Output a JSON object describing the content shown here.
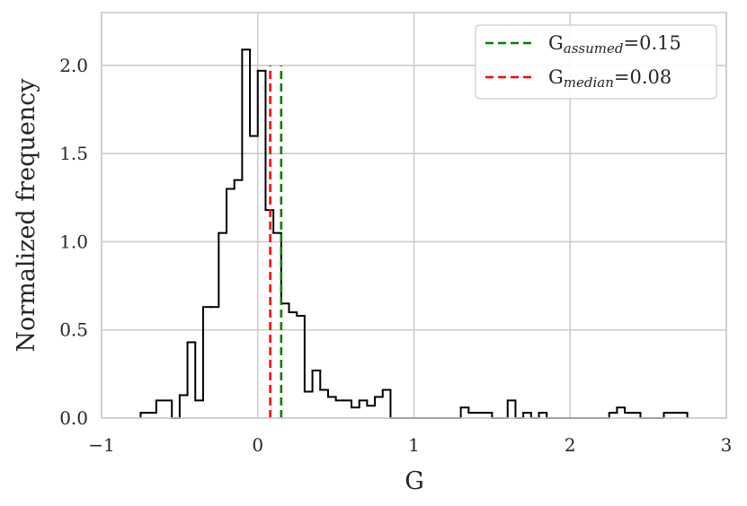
{
  "chart_data": {
    "type": "histogram",
    "xlabel": "G",
    "ylabel": "Normalized frequency",
    "xlim": [
      -1,
      3
    ],
    "ylim": [
      0,
      2.3
    ],
    "xticks": [
      -1,
      0,
      1,
      2,
      3
    ],
    "xtick_labels": [
      "−1",
      "0",
      "1",
      "2",
      "3"
    ],
    "yticks": [
      0,
      0.5,
      1,
      1.5,
      2
    ],
    "ytick_labels": [
      "0.0",
      "0.5",
      "1.0",
      "1.5",
      "2.0"
    ],
    "grid": true,
    "legend_position": "top-right",
    "histogram": {
      "color": "#000000",
      "edges": [
        -0.75,
        -0.65,
        -0.55,
        -0.5,
        -0.45,
        -0.4,
        -0.35,
        -0.3,
        -0.25,
        -0.2,
        -0.15,
        -0.1,
        -0.05,
        0,
        0.05,
        0.1,
        0.15,
        0.2,
        0.25,
        0.3,
        0.35,
        0.4,
        0.45,
        0.5,
        0.55,
        0.6,
        0.65,
        0.7,
        0.75,
        0.8,
        0.85,
        0.9,
        0.95,
        1,
        1.05,
        1.1,
        1.15,
        1.2,
        1.25,
        1.3,
        1.35,
        1.5,
        1.6,
        1.65,
        1.7,
        1.75,
        1.8,
        1.85,
        2.0,
        2.05,
        2.25,
        2.3,
        2.35,
        2.4,
        2.45,
        2.6,
        2.65,
        2.7,
        2.75
      ],
      "values": [
        0.03,
        0.1,
        0,
        0.13,
        0.43,
        0.1,
        0.63,
        0.63,
        1.05,
        1.3,
        1.35,
        2.09,
        1.6,
        1.97,
        1.18,
        1.05,
        0.65,
        0.6,
        0.58,
        0.15,
        0.27,
        0.16,
        0.12,
        0.1,
        0.1,
        0.06,
        0.1,
        0.07,
        0.12,
        0.16,
        0,
        0,
        0,
        0,
        0,
        0,
        0,
        0,
        0,
        0.06,
        0.03,
        0,
        0.1,
        0,
        0.03,
        0,
        0.03,
        0,
        0,
        0,
        0.03,
        0.06,
        0.03,
        0.03,
        0,
        0.03,
        0.03,
        0.03
      ]
    },
    "lines": [
      {
        "label_main": "G",
        "label_sub": "assumed",
        "label_value": "=0.15",
        "x": 0.15,
        "y0": 0,
        "y1": 2.0,
        "color": "#008000",
        "style": "dashed"
      },
      {
        "label_main": "G",
        "label_sub": "median",
        "label_value": "=0.08",
        "x": 0.08,
        "y0": 0,
        "y1": 2.0,
        "color": "#ff0000",
        "style": "dashed"
      }
    ]
  }
}
